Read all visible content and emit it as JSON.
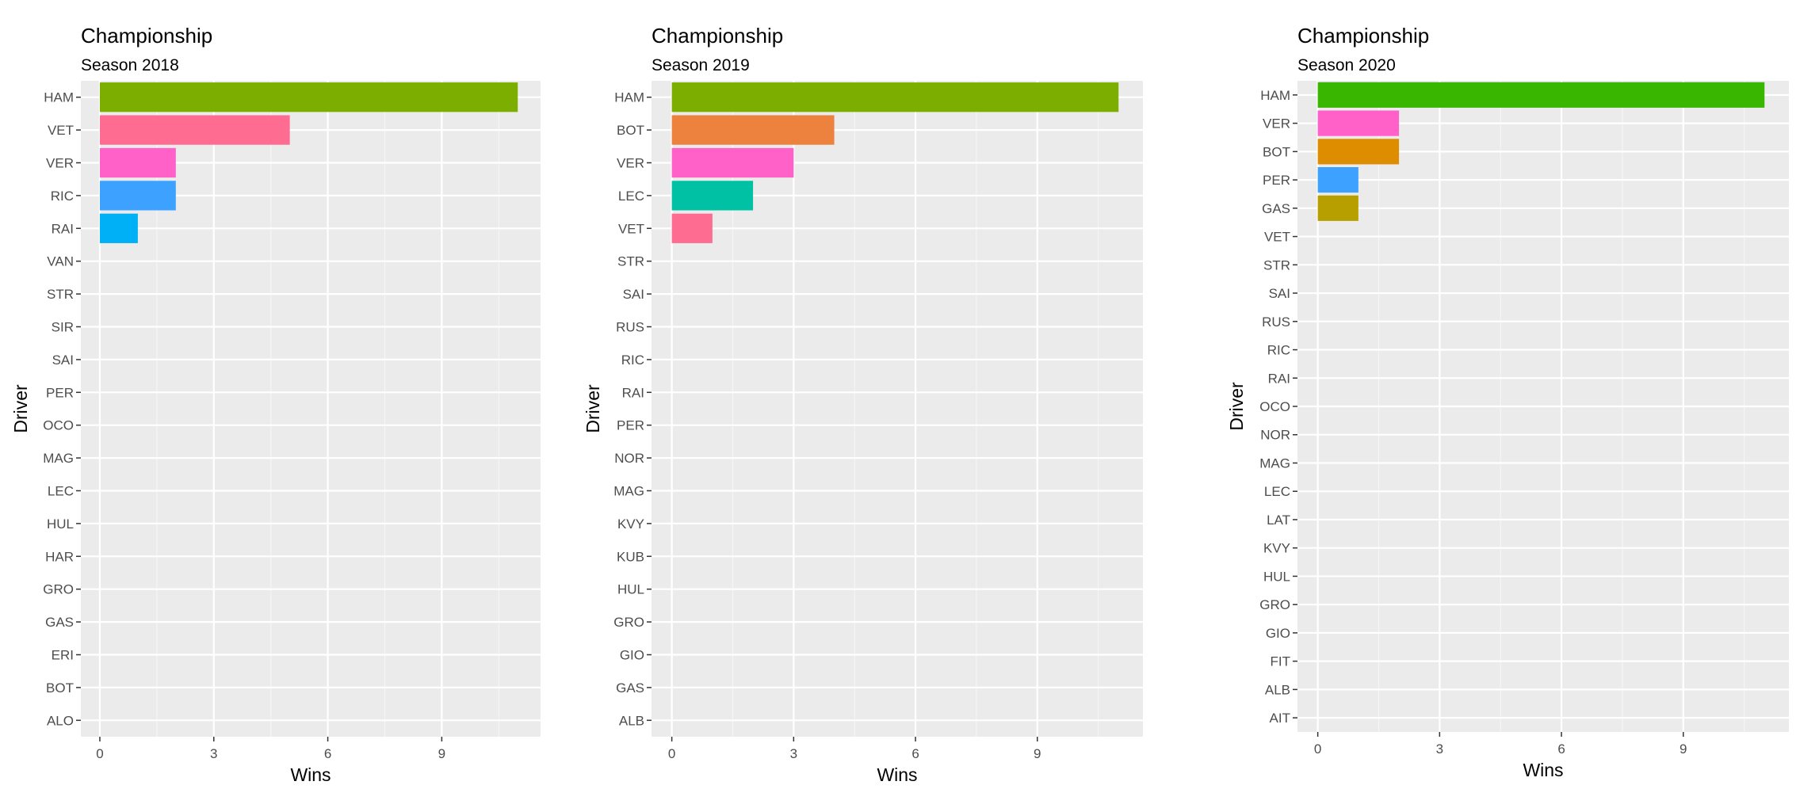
{
  "chart_data": [
    {
      "type": "bar",
      "orientation": "horizontal",
      "title": "Championship",
      "subtitle": "Season 2018",
      "xlabel": "Wins",
      "ylabel": "Driver",
      "xlim": [
        -0.5,
        11.6
      ],
      "xticks": [
        0,
        3,
        6,
        9
      ],
      "grid": true,
      "legend": "none",
      "categories": [
        "HAM",
        "VET",
        "VER",
        "RIC",
        "RAI",
        "VAN",
        "STR",
        "SIR",
        "SAI",
        "PER",
        "OCO",
        "MAG",
        "LEC",
        "HUL",
        "HAR",
        "GRO",
        "GAS",
        "ERI",
        "BOT",
        "ALO"
      ],
      "values": [
        11,
        5,
        2,
        2,
        1,
        0,
        0,
        0,
        0,
        0,
        0,
        0,
        0,
        0,
        0,
        0,
        0,
        0,
        0,
        0
      ],
      "colors": [
        "#7CAE00",
        "#FF6C91",
        "#FF61C9",
        "#3DA1FF",
        "#00B0F6",
        "",
        "",
        "",
        "",
        "",
        "",
        "",
        "",
        "",
        "",
        "",
        "",
        "",
        "",
        ""
      ]
    },
    {
      "type": "bar",
      "orientation": "horizontal",
      "title": "Championship",
      "subtitle": "Season 2019",
      "xlabel": "Wins",
      "ylabel": "Driver",
      "xlim": [
        -0.5,
        11.6
      ],
      "xticks": [
        0,
        3,
        6,
        9
      ],
      "grid": true,
      "legend": "none",
      "categories": [
        "HAM",
        "BOT",
        "VER",
        "LEC",
        "VET",
        "STR",
        "SAI",
        "RUS",
        "RIC",
        "RAI",
        "PER",
        "NOR",
        "MAG",
        "KVY",
        "KUB",
        "HUL",
        "GRO",
        "GIO",
        "GAS",
        "ALB"
      ],
      "values": [
        11,
        4,
        3,
        2,
        1,
        0,
        0,
        0,
        0,
        0,
        0,
        0,
        0,
        0,
        0,
        0,
        0,
        0,
        0,
        0
      ],
      "colors": [
        "#7CAE00",
        "#ED813E",
        "#FF61C9",
        "#00C1A3",
        "#FF6C91",
        "",
        "",
        "",
        "",
        "",
        "",
        "",
        "",
        "",
        "",
        "",
        "",
        "",
        "",
        ""
      ]
    },
    {
      "type": "bar",
      "orientation": "horizontal",
      "title": "Championship",
      "subtitle": "Season 2020",
      "xlabel": "Wins",
      "ylabel": "Driver",
      "xlim": [
        -0.5,
        11.6
      ],
      "xticks": [
        0,
        3,
        6,
        9
      ],
      "grid": true,
      "legend": "none",
      "categories": [
        "HAM",
        "VER",
        "BOT",
        "PER",
        "GAS",
        "VET",
        "STR",
        "SAI",
        "RUS",
        "RIC",
        "RAI",
        "OCO",
        "NOR",
        "MAG",
        "LEC",
        "LAT",
        "KVY",
        "HUL",
        "GRO",
        "GIO",
        "FIT",
        "ALB",
        "AIT"
      ],
      "values": [
        11,
        2,
        2,
        1,
        1,
        0,
        0,
        0,
        0,
        0,
        0,
        0,
        0,
        0,
        0,
        0,
        0,
        0,
        0,
        0,
        0,
        0,
        0
      ],
      "colors": [
        "#39B600",
        "#FF61C9",
        "#DE8C00",
        "#3DA1FF",
        "#B79F00",
        "",
        "",
        "",
        "",
        "",
        "",
        "",
        "",
        "",
        "",
        "",
        "",
        "",
        "",
        "",
        "",
        "",
        ""
      ]
    }
  ]
}
